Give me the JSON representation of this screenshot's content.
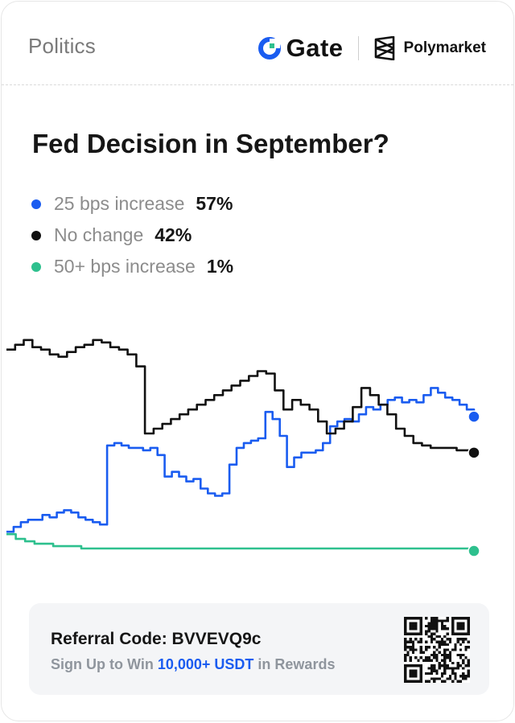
{
  "header": {
    "category": "Politics",
    "brands": [
      {
        "name": "Gate",
        "icon": "gate-logo-icon"
      },
      {
        "name": "Polymarket",
        "icon": "polymarket-logo-icon"
      }
    ]
  },
  "colors": {
    "blue": "#1a5cf0",
    "black": "#111111",
    "green": "#2ec08e",
    "gate_ring": "#1a5cf0",
    "gate_accent": "#2ec08e"
  },
  "chart_data": {
    "type": "line",
    "title": "Fed Decision in September?",
    "ylim": [
      0,
      100
    ],
    "grid": false,
    "legend_position": "top-left",
    "series": [
      {
        "name": "25 bps increase",
        "label": "57%",
        "color": "#1a5cf0",
        "values": [
          9,
          11,
          13,
          14,
          14,
          16,
          15,
          17,
          18,
          17,
          15,
          14,
          13,
          12,
          45,
          46,
          45,
          44,
          44,
          43,
          44,
          41,
          32,
          34,
          32,
          30,
          31,
          27,
          25,
          24,
          25,
          37,
          44,
          46,
          47,
          48,
          59,
          56,
          49,
          36,
          40,
          42,
          42,
          43,
          46,
          53,
          55,
          56,
          55,
          58,
          61,
          60,
          62,
          64,
          65,
          63,
          64,
          63,
          66,
          69,
          67,
          65,
          64,
          62,
          60,
          57
        ]
      },
      {
        "name": "No change",
        "label": "42%",
        "color": "#111111",
        "values": [
          85,
          87,
          89,
          86,
          85,
          83,
          82,
          84,
          86,
          87,
          89,
          88,
          86,
          85,
          83,
          78,
          50,
          52,
          54,
          56,
          58,
          60,
          62,
          64,
          66,
          68,
          70,
          72,
          74,
          76,
          75,
          68,
          60,
          64,
          62,
          60,
          55,
          50,
          52,
          55,
          61,
          69,
          66,
          62,
          58,
          52,
          49,
          46,
          45,
          44,
          44,
          44,
          43,
          43,
          42
        ]
      },
      {
        "name": "50+ bps increase",
        "label": "1%",
        "color": "#2ec08e",
        "values": [
          8,
          6,
          5,
          4,
          4,
          3,
          3,
          3,
          2,
          2,
          2,
          2,
          2,
          2,
          2,
          2,
          2,
          2,
          2,
          2,
          2,
          2,
          2,
          2,
          2,
          2,
          2,
          2,
          2,
          2,
          2,
          2,
          2,
          2,
          2,
          2,
          2,
          2,
          2,
          2,
          2,
          2,
          2,
          2,
          2,
          2,
          2,
          2,
          2,
          2,
          1
        ]
      }
    ]
  },
  "referral": {
    "label": "Referral Code:",
    "code": "BVVEVQ9c",
    "sub_prefix": "Sign Up to Win",
    "sub_highlight": "10,000+ USDT",
    "sub_suffix": "in Rewards",
    "qr_icon": "qr-code-icon"
  }
}
